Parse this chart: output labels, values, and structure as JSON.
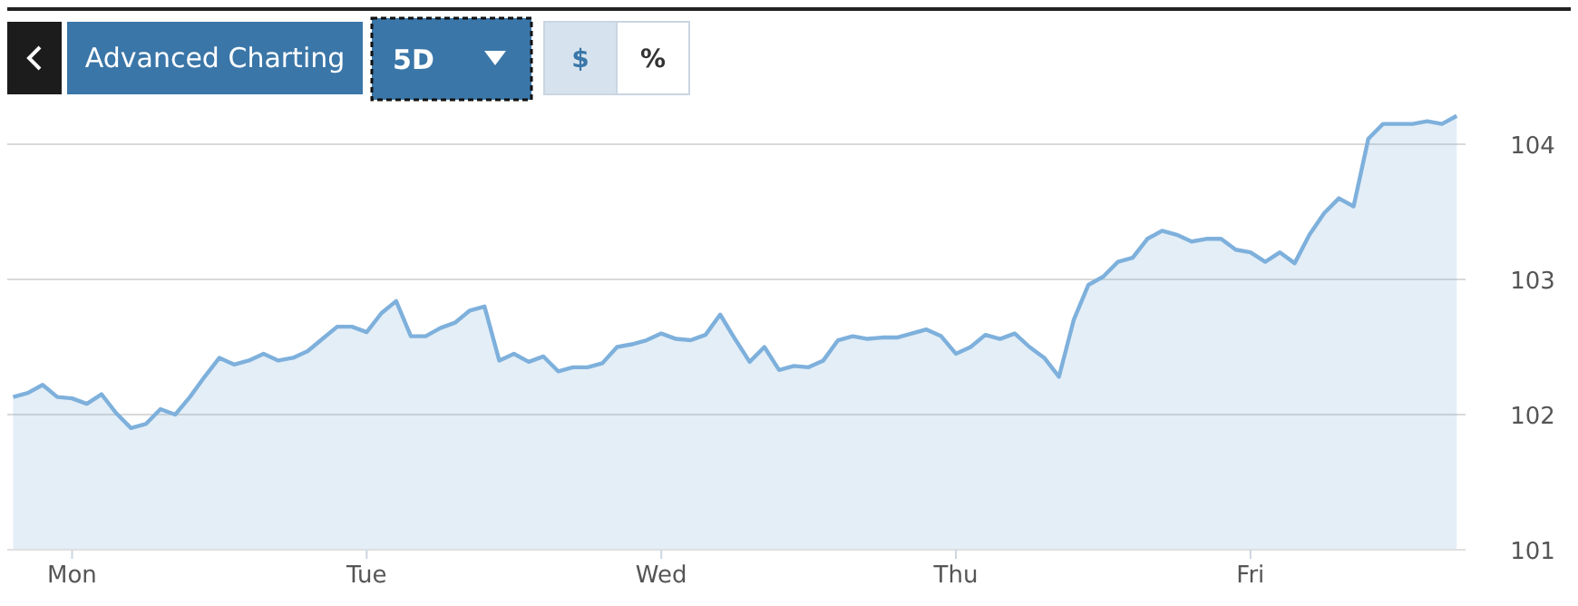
{
  "chart_data": {
    "type": "area",
    "categories": [
      null,
      null,
      null,
      null,
      "Mon",
      null,
      null,
      null,
      null,
      null,
      null,
      null,
      null,
      null,
      null,
      null,
      null,
      null,
      null,
      null,
      null,
      null,
      null,
      null,
      "Tue",
      null,
      null,
      null,
      null,
      null,
      null,
      null,
      null,
      null,
      null,
      null,
      null,
      null,
      null,
      null,
      null,
      null,
      null,
      null,
      "Wed",
      null,
      null,
      null,
      null,
      null,
      null,
      null,
      null,
      null,
      null,
      null,
      null,
      null,
      null,
      null,
      null,
      null,
      null,
      null,
      "Thu",
      null,
      null,
      null,
      null,
      null,
      null,
      null,
      null,
      null,
      null,
      null,
      null,
      null,
      null,
      null,
      null,
      null,
      null,
      null,
      "Fri",
      null,
      null,
      null,
      null,
      null,
      null,
      null,
      null,
      null,
      null,
      null,
      null,
      null,
      null
    ],
    "series": [
      {
        "color": "#7eb0dc",
        "values": [
          102.13,
          102.16,
          102.22,
          102.13,
          102.12,
          102.08,
          102.15,
          102.01,
          101.9,
          101.93,
          102.04,
          102.0,
          102.13,
          102.28,
          102.42,
          102.37,
          102.4,
          102.45,
          102.4,
          102.42,
          102.47,
          102.56,
          102.65,
          102.65,
          102.61,
          102.75,
          102.84,
          102.58,
          102.58,
          102.64,
          102.68,
          102.77,
          102.8,
          102.4,
          102.45,
          102.39,
          102.43,
          102.32,
          102.35,
          102.35,
          102.38,
          102.5,
          102.52,
          102.55,
          102.6,
          102.56,
          102.55,
          102.59,
          102.74,
          102.56,
          102.39,
          102.5,
          102.33,
          102.36,
          102.35,
          102.4,
          102.55,
          102.58,
          102.56,
          102.57,
          102.57,
          102.6,
          102.63,
          102.58,
          102.45,
          102.5,
          102.59,
          102.56,
          102.6,
          102.5,
          102.42,
          102.28,
          102.7,
          102.96,
          103.02,
          103.13,
          103.16,
          103.3,
          103.36,
          103.33,
          103.28,
          103.3,
          103.3,
          103.22,
          103.2,
          103.13,
          103.2,
          103.12,
          103.33,
          103.49,
          103.6,
          103.54,
          104.04,
          104.15,
          104.15,
          104.15,
          104.17,
          104.15,
          104.21
        ]
      }
    ],
    "ylim": [
      101,
      105
    ],
    "yticks": [
      101,
      102,
      103,
      104
    ],
    "grid": "y",
    "annotations": [
      "Advanced Charting",
      "5D",
      "$",
      "%"
    ]
  }
}
